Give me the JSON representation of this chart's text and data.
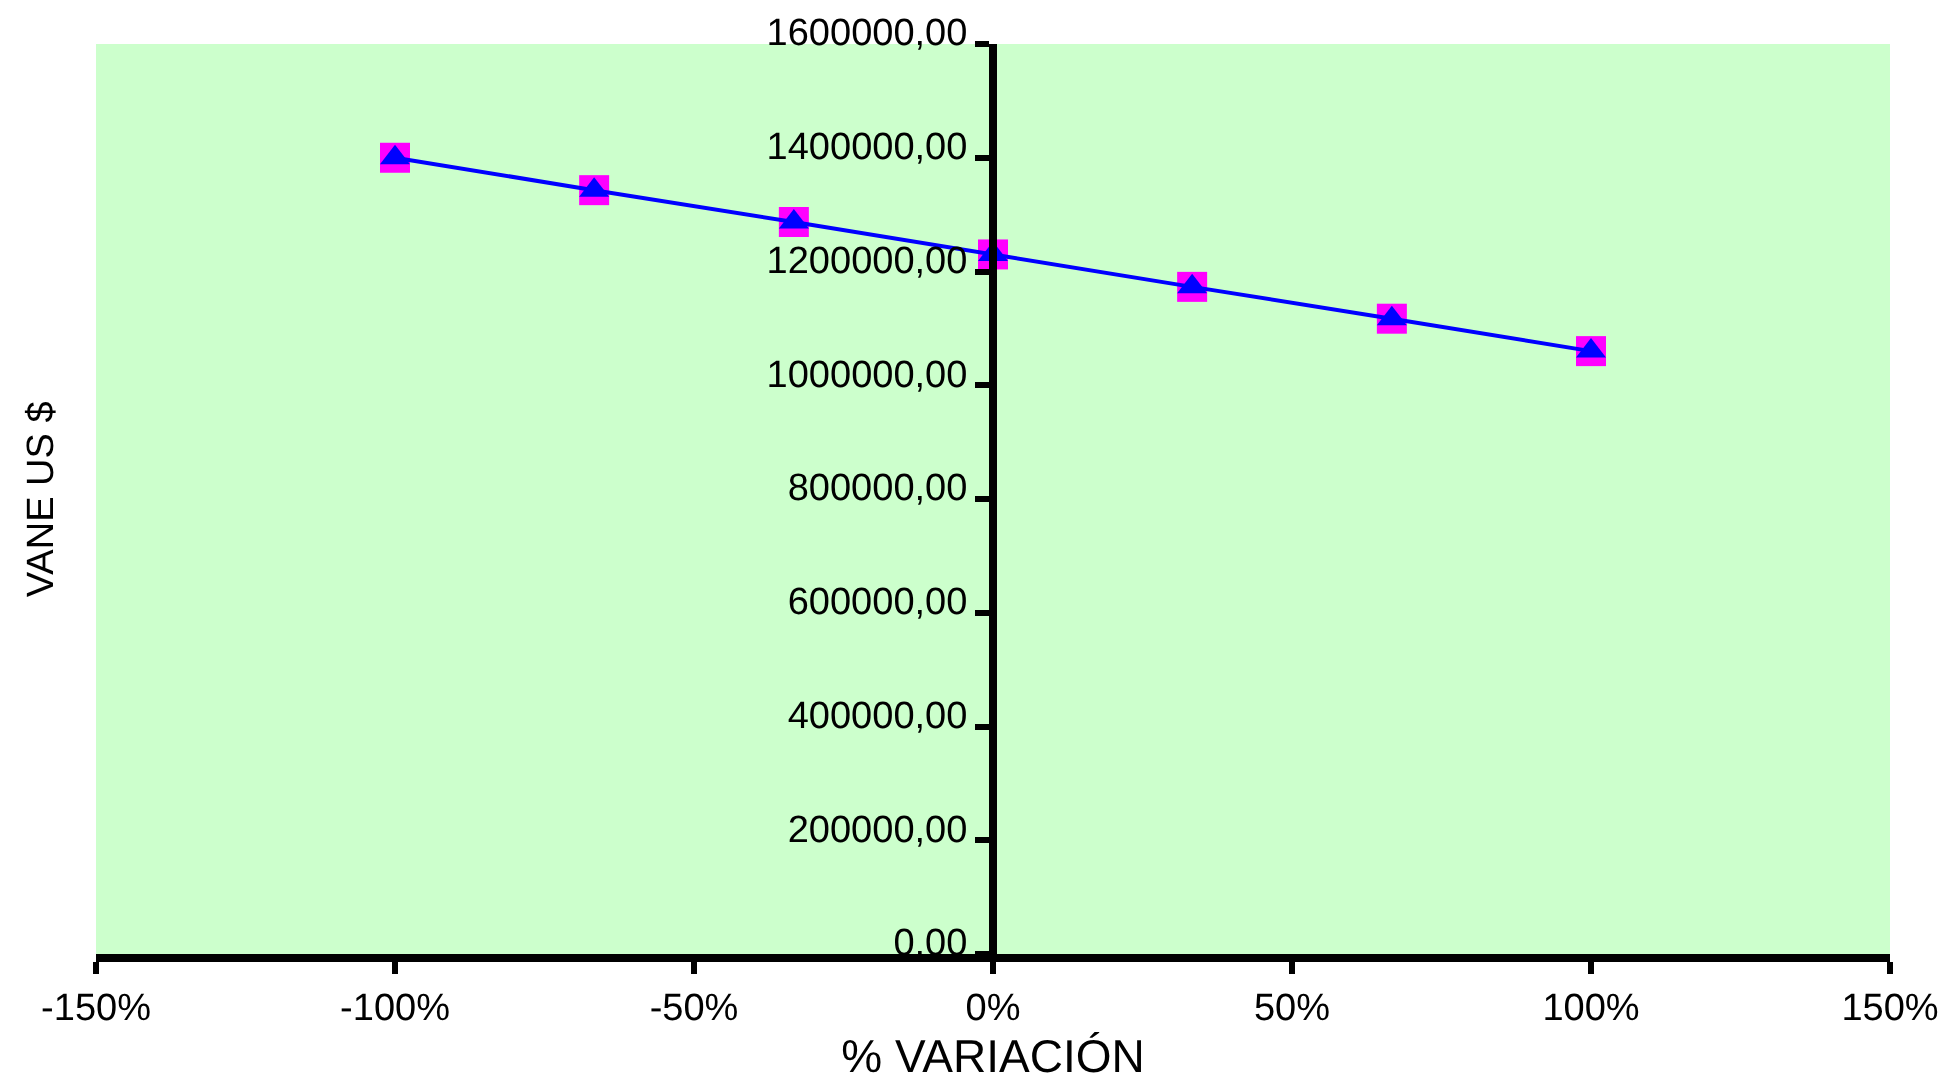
{
  "chart_data": {
    "type": "line",
    "xlabel": "% VARIACIÓN",
    "ylabel": "VANE US $",
    "x": [
      -100,
      -66.7,
      -33.3,
      0,
      33.3,
      66.7,
      100
    ],
    "series": [
      {
        "type": "scatter",
        "marker": "square",
        "color": "#ff00ff",
        "values": [
          1400000,
          1343000,
          1287000,
          1230000,
          1173000,
          1117000,
          1060000
        ]
      },
      {
        "marker": "triangle",
        "color": "#0000ff",
        "values": [
          1400000,
          1343000,
          1287000,
          1230000,
          1173000,
          1117000,
          1060000
        ]
      }
    ],
    "xlim": [
      -150,
      150
    ],
    "xticks": [
      {
        "value": -150,
        "label": "-150%"
      },
      {
        "value": -100,
        "label": "-100%"
      },
      {
        "value": -50,
        "label": "-50%"
      },
      {
        "value": 0,
        "label": "0%"
      },
      {
        "value": 50,
        "label": "50%"
      },
      {
        "value": 100,
        "label": "100%"
      },
      {
        "value": 150,
        "label": "150%"
      }
    ],
    "ylim": [
      0,
      1600000
    ],
    "yticks": [
      {
        "value": 0,
        "label": "0,00"
      },
      {
        "value": 200000,
        "label": "200000,00"
      },
      {
        "value": 400000,
        "label": "400000,00"
      },
      {
        "value": 600000,
        "label": "600000,00"
      },
      {
        "value": 800000,
        "label": "800000,00"
      },
      {
        "value": 1000000,
        "label": "1000000,00"
      },
      {
        "value": 1200000,
        "label": "1200000,00"
      },
      {
        "value": 1400000,
        "label": "1400000,00"
      },
      {
        "value": 1600000,
        "label": "1600000,00"
      }
    ],
    "grid": false
  }
}
